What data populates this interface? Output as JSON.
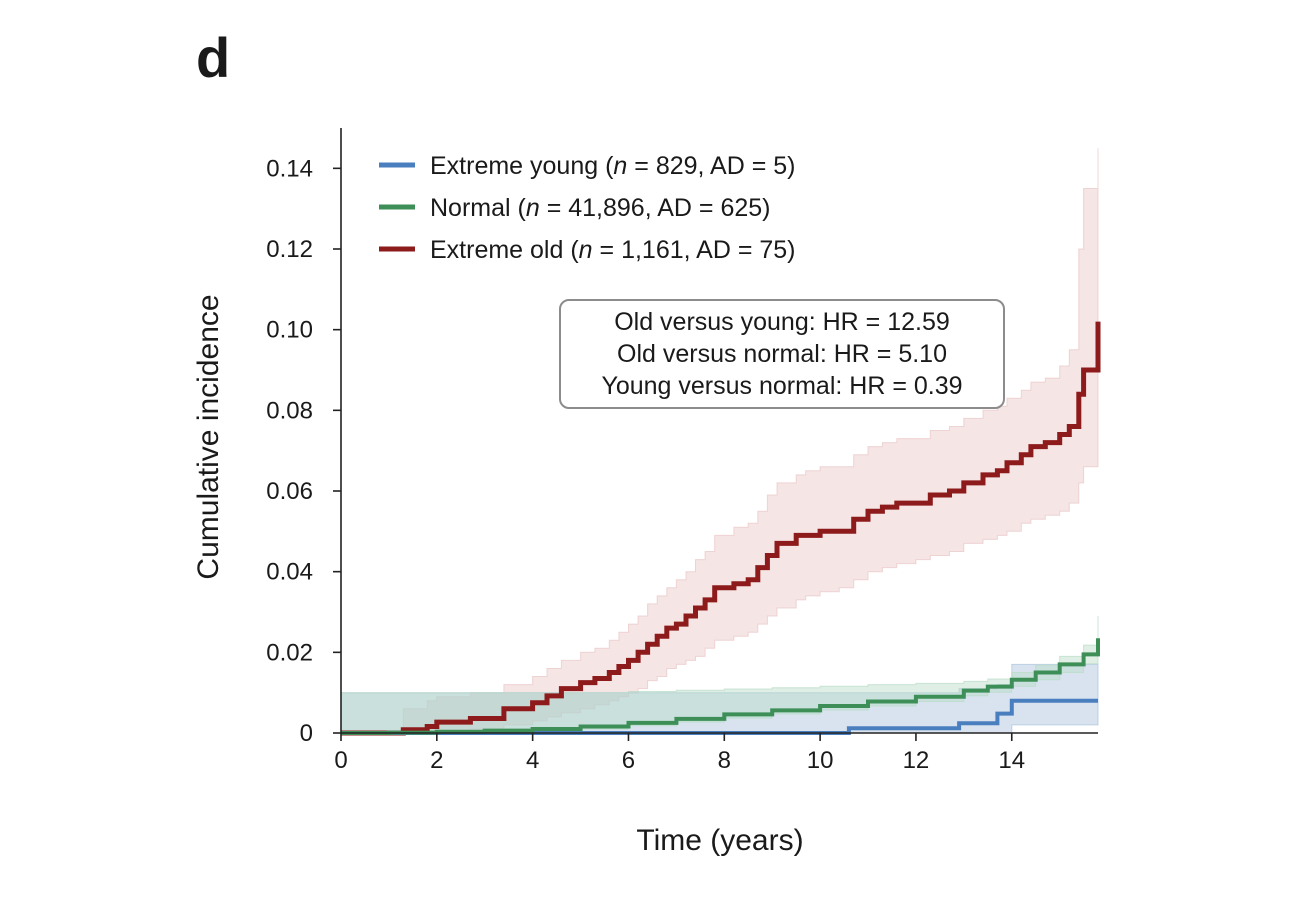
{
  "panel_label": "d",
  "chart_data": {
    "type": "line",
    "title": "",
    "xlabel": "Time (years)",
    "ylabel": "Cumulative incidence",
    "xlim": [
      0,
      15.8
    ],
    "ylim": [
      0,
      0.15
    ],
    "x_ticks": [
      0,
      2,
      4,
      6,
      8,
      10,
      12,
      14
    ],
    "x_tick_labels": [
      "0",
      "2",
      "4",
      "6",
      "8",
      "10",
      "12",
      "14"
    ],
    "y_ticks": [
      0,
      0.02,
      0.04,
      0.06,
      0.08,
      0.1,
      0.12,
      0.14
    ],
    "y_tick_labels": [
      "0",
      "0.02",
      "0.04",
      "0.06",
      "0.08",
      "0.10",
      "0.12",
      "0.14"
    ],
    "grid": false,
    "legend_position": "top-left",
    "series": [
      {
        "key": "young",
        "legend_prefix": "Extreme young (",
        "legend_italic": "n",
        "legend_suffix": " = 829, AD = 5)",
        "color": "#4a7fbf",
        "band_color": "#a9c2dc",
        "x": [
          0,
          10.6,
          12.9,
          13.7,
          14.0,
          15.8
        ],
        "y": [
          0,
          0.0012,
          0.0024,
          0.0048,
          0.008,
          0.008
        ],
        "lower": [
          0,
          0,
          0,
          0,
          0.002,
          0.003
        ],
        "upper": [
          0.01,
          0.01,
          0.011,
          0.012,
          0.017,
          0.017
        ]
      },
      {
        "key": "normal",
        "legend_prefix": "Normal (",
        "legend_italic": "n",
        "legend_suffix": " = 41,896, AD = 625)",
        "color": "#3d8f57",
        "band_color": "#b8dcc6",
        "x": [
          0,
          1,
          2,
          3,
          4,
          5,
          6,
          7,
          8,
          9,
          10,
          11,
          12,
          13,
          13.5,
          14,
          14.5,
          15,
          15.5,
          15.8
        ],
        "y": [
          0,
          0.0001,
          0.0003,
          0.0006,
          0.001,
          0.0016,
          0.0025,
          0.0035,
          0.0046,
          0.0056,
          0.0067,
          0.0078,
          0.009,
          0.0105,
          0.0115,
          0.0132,
          0.015,
          0.017,
          0.0195,
          0.0235
        ],
        "lower": [
          0,
          0,
          0,
          0,
          0.0005,
          0.001,
          0.0018,
          0.0027,
          0.0037,
          0.0047,
          0.0057,
          0.0067,
          0.0078,
          0.0092,
          0.0101,
          0.0116,
          0.0132,
          0.015,
          0.0172,
          0.018
        ],
        "upper": [
          0.01,
          0.01,
          0.01,
          0.01,
          0.01,
          0.01,
          0.0103,
          0.0106,
          0.0109,
          0.0112,
          0.0116,
          0.012,
          0.0123,
          0.0128,
          0.0134,
          0.015,
          0.0168,
          0.019,
          0.0218,
          0.029
        ]
      },
      {
        "key": "old",
        "legend_prefix": "Extreme old (",
        "legend_italic": "n",
        "legend_suffix": " = 1,161, AD = 75)",
        "color": "#8e1b1b",
        "band_color": "#e9c6c6",
        "x": [
          0,
          1.3,
          1.8,
          2.0,
          2.7,
          3.4,
          4.0,
          4.3,
          4.6,
          5.0,
          5.3,
          5.6,
          5.8,
          6.0,
          6.2,
          6.4,
          6.6,
          6.8,
          7.0,
          7.2,
          7.4,
          7.6,
          7.8,
          8.2,
          8.5,
          8.7,
          8.9,
          9.1,
          9.5,
          9.7,
          10.0,
          10.4,
          10.7,
          11.0,
          11.3,
          11.6,
          12.0,
          12.3,
          12.7,
          13.0,
          13.4,
          13.7,
          13.9,
          14.2,
          14.4,
          14.7,
          15.0,
          15.2,
          15.4,
          15.5,
          15.8
        ],
        "y": [
          0,
          0.0008,
          0.0016,
          0.0027,
          0.0036,
          0.006,
          0.0075,
          0.0092,
          0.011,
          0.0125,
          0.0135,
          0.015,
          0.0165,
          0.018,
          0.02,
          0.022,
          0.024,
          0.026,
          0.027,
          0.029,
          0.031,
          0.033,
          0.036,
          0.037,
          0.038,
          0.041,
          0.044,
          0.047,
          0.049,
          0.049,
          0.05,
          0.05,
          0.053,
          0.055,
          0.056,
          0.057,
          0.057,
          0.059,
          0.06,
          0.062,
          0.064,
          0.065,
          0.067,
          0.069,
          0.071,
          0.072,
          0.074,
          0.076,
          0.084,
          0.09,
          0.102
        ],
        "lower": [
          0,
          0,
          0,
          0,
          0.001,
          0.002,
          0.003,
          0.004,
          0.005,
          0.006,
          0.007,
          0.008,
          0.009,
          0.01,
          0.011,
          0.013,
          0.014,
          0.016,
          0.017,
          0.018,
          0.019,
          0.021,
          0.023,
          0.024,
          0.025,
          0.027,
          0.029,
          0.031,
          0.033,
          0.034,
          0.035,
          0.036,
          0.038,
          0.04,
          0.041,
          0.042,
          0.043,
          0.044,
          0.045,
          0.047,
          0.048,
          0.049,
          0.05,
          0.052,
          0.053,
          0.054,
          0.055,
          0.057,
          0.062,
          0.066,
          0.072
        ],
        "upper": [
          0,
          0.006,
          0.008,
          0.009,
          0.01,
          0.012,
          0.014,
          0.016,
          0.018,
          0.02,
          0.021,
          0.023,
          0.025,
          0.027,
          0.029,
          0.032,
          0.034,
          0.036,
          0.038,
          0.04,
          0.043,
          0.045,
          0.049,
          0.051,
          0.052,
          0.055,
          0.059,
          0.062,
          0.064,
          0.065,
          0.066,
          0.066,
          0.069,
          0.071,
          0.072,
          0.073,
          0.073,
          0.075,
          0.076,
          0.078,
          0.08,
          0.081,
          0.083,
          0.085,
          0.087,
          0.088,
          0.091,
          0.095,
          0.12,
          0.135,
          0.145
        ]
      }
    ],
    "annotation_lines": [
      "Old versus young: HR = 12.59",
      "Old versus normal: HR = 5.10",
      "Young versus normal: HR = 0.39"
    ]
  }
}
